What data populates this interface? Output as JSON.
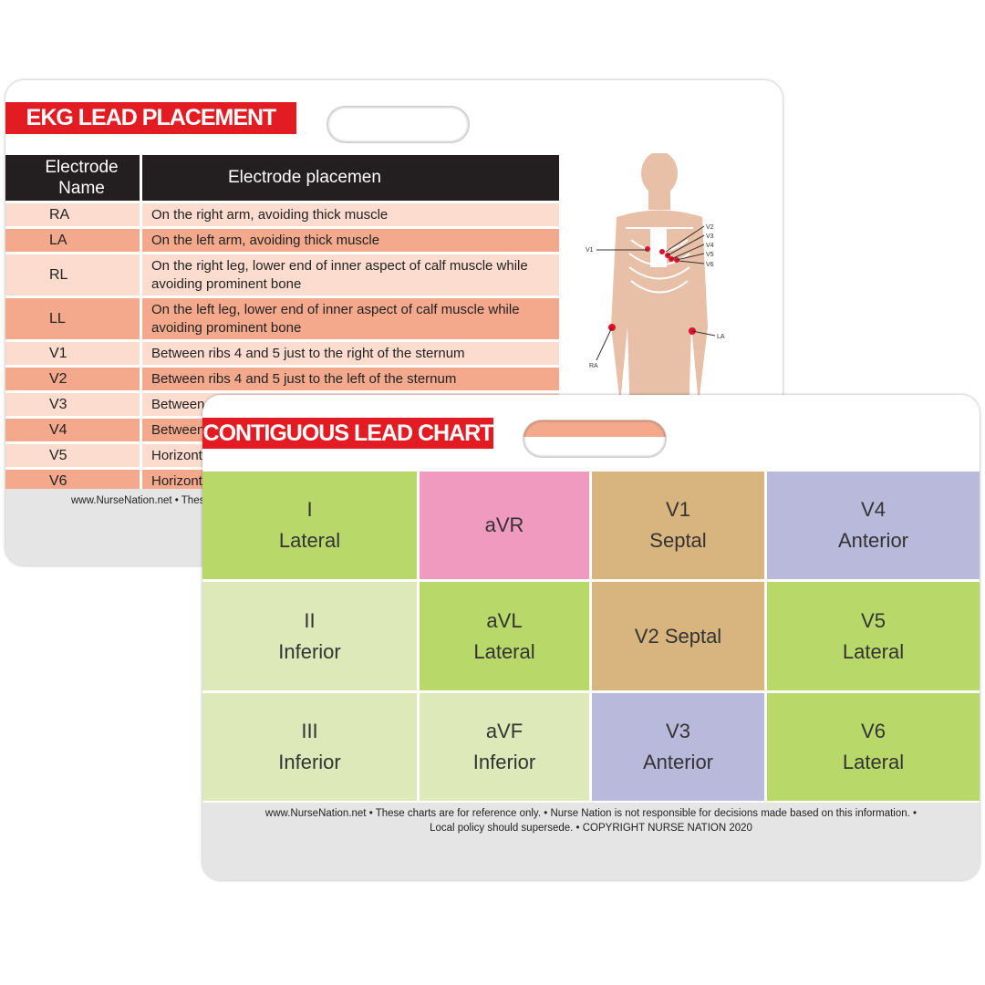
{
  "back_card": {
    "title": "EKG LEAD PLACEMENT",
    "table": {
      "headers": [
        "Electrode Name",
        "Electrode placemen"
      ],
      "rows": [
        [
          "RA",
          "On the right arm, avoiding thick muscle"
        ],
        [
          "LA",
          "On the left arm, avoiding thick muscle"
        ],
        [
          "RL",
          "On the right leg, lower end of inner aspect of calf muscle while avoiding prominent bone"
        ],
        [
          "LL",
          "On the left leg, lower end of inner aspect of calf muscle while avoiding prominent bone"
        ],
        [
          "V1",
          "Between ribs 4 and 5 just to the right of the sternum"
        ],
        [
          "V2",
          "Between ribs 4 and 5 just to the left of the sternum"
        ],
        [
          "V3",
          "Between"
        ],
        [
          "V4",
          "Between"
        ],
        [
          "V5",
          "Horizont"
        ],
        [
          "V6",
          "Horizont"
        ]
      ]
    },
    "diagram_labels": {
      "v1": "V1",
      "v2": "V2",
      "v3": "V3",
      "v4": "V4",
      "v5": "V5",
      "v6": "V6",
      "ra": "RA",
      "la": "LA"
    },
    "footer": "www.NurseNation.net • These"
  },
  "front_card": {
    "title": "CONTIGUOUS LEAD CHART",
    "cells": [
      {
        "lead": "I",
        "region": "Lateral",
        "color": "#b9d86a"
      },
      {
        "lead": "aVR",
        "region": "",
        "color": "#f09ac0"
      },
      {
        "lead": "V1",
        "region": "Septal",
        "color": "#d8b47e"
      },
      {
        "lead": "V4",
        "region": "Anterior",
        "color": "#b9b9dc"
      },
      {
        "lead": "II",
        "region": "Inferior",
        "color": "#dde9b8"
      },
      {
        "lead": "aVL",
        "region": "Lateral",
        "color": "#b9d86a"
      },
      {
        "lead": "V2 Septal",
        "region": "",
        "color": "#d8b47e"
      },
      {
        "lead": "V5",
        "region": "Lateral",
        "color": "#b9d86a"
      },
      {
        "lead": "III",
        "region": "Inferior",
        "color": "#dde9b8"
      },
      {
        "lead": "aVF",
        "region": "Inferior",
        "color": "#dde9b8"
      },
      {
        "lead": "V3",
        "region": "Anterior",
        "color": "#b9b9dc"
      },
      {
        "lead": "V6",
        "region": "Lateral",
        "color": "#b9d86a"
      }
    ],
    "footer_line1": "www.NurseNation.net • These charts are for reference only. • Nurse Nation is not responsible for decisions made based on this information. •",
    "footer_line2": "Local policy should supersede. • COPYRIGHT NURSE NATION 2020"
  }
}
